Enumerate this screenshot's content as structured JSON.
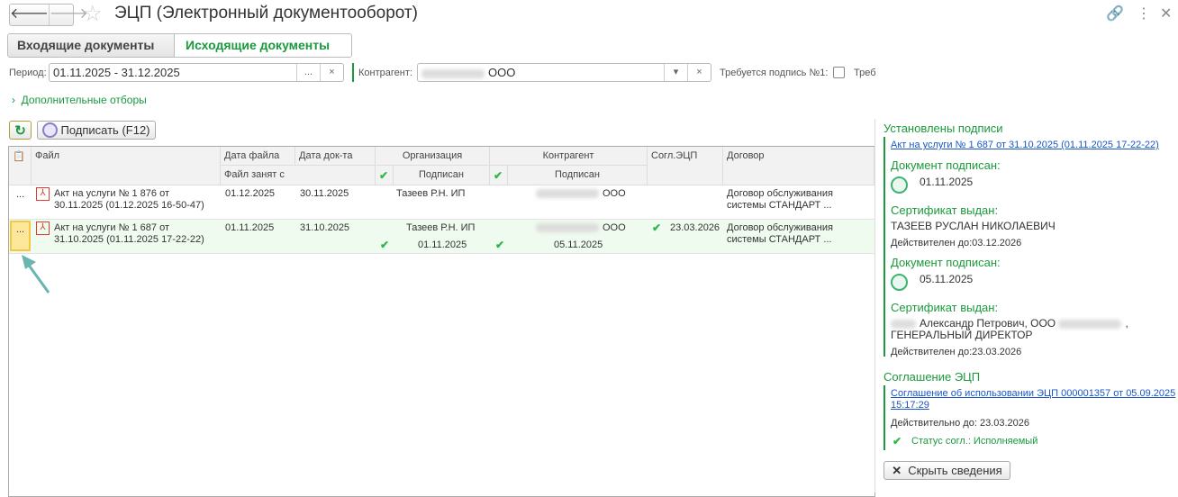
{
  "header": {
    "back": "🡐",
    "forward": "🡒",
    "star": "☆",
    "title": "ЭЦП (Электронный документооборот)",
    "icons": [
      "link-icon",
      "more-icon",
      "close-icon"
    ]
  },
  "tabs": [
    {
      "label": "Входящие документы",
      "active": false
    },
    {
      "label": "Исходящие документы",
      "active": true
    }
  ],
  "filters": {
    "period_label": "Период:",
    "period_value": "01.11.2025 - 31.12.2025",
    "choose": "...",
    "clear": "×",
    "contractor_label": "Контрагент:",
    "contractor_value": "ООО",
    "dropdown": "▾",
    "sign1_label": "Требуется подпись №1:",
    "sign1_checked": false,
    "sign2_label": "Треб",
    "extra_filters": "Дополнительные отборы"
  },
  "toolbar": {
    "refresh": "↻",
    "sign": "Подписать (F12)"
  },
  "table": {
    "headers": {
      "file": "Файл",
      "file_date": "Дата  файла",
      "doc_date": "Дата док-та",
      "file_busy": "Файл занят с",
      "org": "Организация",
      "org_signed": "Подписан",
      "contr": "Контрагент",
      "contr_signed": "Подписан",
      "agreement": "Согл.ЭЦП",
      "contract": "Договор"
    },
    "rows": [
      {
        "menu": "...",
        "file": "Акт на услуги № 1 876 от 30.11.2025 (01.12.2025 16-50-47)",
        "file_date": "01.12.2025",
        "doc_date": "30.11.2025",
        "org": "Тазеев Р.Н. ИП",
        "org_signed_date": "",
        "contr": "ООО",
        "contr_signed_date": "",
        "agreement": "",
        "contract": "Договор обслуживания системы СТАНДАРТ ..."
      },
      {
        "menu": "...",
        "file": "Акт на услуги № 1 687 от 31.10.2025 (01.11.2025 17-22-22)",
        "file_date": "01.11.2025",
        "doc_date": "31.10.2025",
        "org": "Тазеев Р.Н. ИП",
        "org_signed_date": "01.11.2025",
        "contr": "ООО",
        "contr_signed_date": "05.11.2025",
        "agreement": "23.03.2026",
        "contract": "Договор обслуживания системы СТАНДАРТ ..."
      }
    ]
  },
  "panel": {
    "signatures_title": "Установлены подписи",
    "doc_link": "Акт на услуги № 1 687 от 31.10.2025 (01.11.2025 17-22-22)",
    "signed_label": "Документ подписан:",
    "cert_label": "Сертификат выдан:",
    "sig1": {
      "date": "01.11.2025",
      "cert": "ТАЗЕЕВ РУСЛАН НИКОЛАЕВИЧ",
      "valid": "Действителен до:03.12.2026"
    },
    "sig2": {
      "date": "05.11.2025",
      "cert1": "Александр Петрович, ООО",
      "cert2": "ГЕНЕРАЛЬНЫЙ ДИРЕКТОР",
      "valid": "Действителен до:23.03.2026"
    },
    "agreement_title": "Соглашение ЭЦП",
    "agreement_link1": "Соглашение об использовании ЭЦП 000001357 от 05.09.2025",
    "agreement_link2": "15:17:29",
    "agreement_valid": "Действительно до: 23.03.2026",
    "agreement_status": "Статус согл.: Исполняемый",
    "hide_button": "Скрыть сведения"
  },
  "colors": {
    "accent": "#1a9a3c",
    "link": "#1a56c4",
    "selected_row": "#f0fbef",
    "current_cell": "#fde79a"
  }
}
